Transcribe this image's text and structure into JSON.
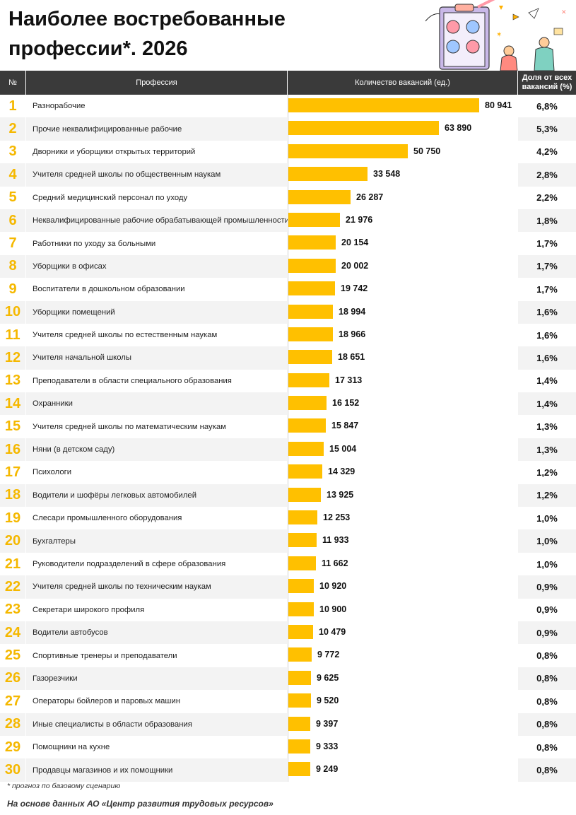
{
  "title": "Наиболее востребованные профессии*. 2026",
  "table": {
    "col_num": "№",
    "col_profession": "Профессия",
    "col_count": "Количество вакансий (ед.)",
    "col_share": "Доля от всех вакансий (%)"
  },
  "chart_data": {
    "type": "bar",
    "orientation": "horizontal",
    "title": "Наиболее востребованные профессии*. 2026",
    "categories": [
      "Разнорабочие",
      "Прочие неквалифицированные рабочие",
      "Дворники и уборщики открытых территорий",
      "Учителя средней школы по общественным наукам",
      "Средний медицинский персонал по уходу",
      "Неквалифицированные рабочие обрабатывающей промышленности",
      "Работники по уходу за больными",
      "Уборщики в офисах",
      "Воспитатели в дошкольном образовании",
      "Уборщики помещений",
      "Учителя средней школы по естественным наукам",
      "Учителя начальной школы",
      "Преподаватели в области специального образования",
      "Охранники",
      "Учителя средней школы по математическим наукам",
      "Няни (в детском саду)",
      "Психологи",
      "Водители и шофёры легковых автомобилей",
      "Слесари промышленного оборудования",
      "Бухгалтеры",
      "Руководители подразделений в сфере образования",
      "Учителя средней школы по техническим наукам",
      "Секретари широкого профиля",
      "Водители автобусов",
      "Спортивные тренеры и преподаватели",
      "Газорезчики",
      "Операторы бойлеров и паровых машин",
      "Иные специалисты в области образования",
      "Помощники на кухне",
      "Продавцы магазинов и их помощники"
    ],
    "values": [
      80941,
      63890,
      50750,
      33548,
      26287,
      21976,
      20154,
      20002,
      19742,
      18994,
      18966,
      18651,
      17313,
      16152,
      15847,
      15004,
      14329,
      13925,
      12253,
      11933,
      11662,
      10920,
      10900,
      10479,
      9772,
      9625,
      9520,
      9397,
      9333,
      9249
    ],
    "value_labels": [
      "80 941",
      "63 890",
      "50 750",
      "33 548",
      "26 287",
      "21 976",
      "20 154",
      "20 002",
      "19 742",
      "18 994",
      "18 966",
      "18 651",
      "17 313",
      "16 152",
      "15 847",
      "15 004",
      "14 329",
      "13 925",
      "12 253",
      "11 933",
      "11 662",
      "10 920",
      "10 900",
      "10 479",
      "9 772",
      "9 625",
      "9 520",
      "9 397",
      "9 333",
      "9 249"
    ],
    "shares": [
      "6,8%",
      "5,3%",
      "4,2%",
      "2,8%",
      "2,2%",
      "1,8%",
      "1,7%",
      "1,7%",
      "1,7%",
      "1,6%",
      "1,6%",
      "1,6%",
      "1,4%",
      "1,4%",
      "1,3%",
      "1,3%",
      "1,2%",
      "1,2%",
      "1,0%",
      "1,0%",
      "1,0%",
      "0,9%",
      "0,9%",
      "0,9%",
      "0,8%",
      "0,8%",
      "0,8%",
      "0,8%",
      "0,8%",
      "0,8%"
    ],
    "bar_color": "#ffc000",
    "rank_color": "#f5b800",
    "header_color": "#3a3a3a",
    "xlim": [
      0,
      80941
    ]
  },
  "footnote": "* прогноз по базовому сценарию",
  "source": "На основе данных АО «Центр развития трудовых ресурсов»",
  "illustration": "clipboard-with-people-illustration"
}
